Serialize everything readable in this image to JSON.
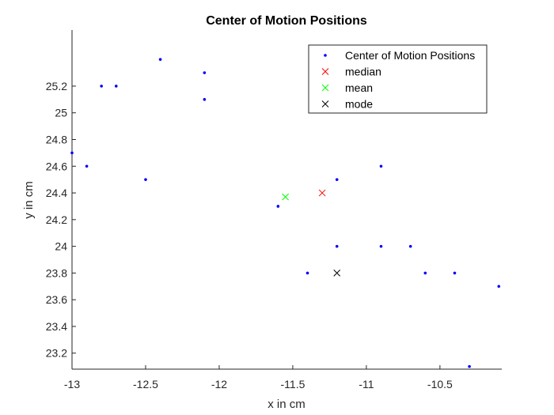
{
  "chart_data": {
    "type": "scatter",
    "title": "Center of Motion Positions",
    "xlabel": "x in cm",
    "ylabel": "y in cm",
    "xlim": [
      -13,
      -10.08
    ],
    "ylim": [
      23.08,
      25.62
    ],
    "xticks": [
      -13,
      -12.5,
      -12,
      -11.5,
      -11,
      -10.5
    ],
    "xtick_labels": [
      "-13",
      "-12.5",
      "-12",
      "-11.5",
      "-11",
      "-10.5"
    ],
    "yticks": [
      23.2,
      23.4,
      23.6,
      23.8,
      24,
      24.2,
      24.4,
      24.6,
      24.8,
      25,
      25.2
    ],
    "ytick_labels": [
      "23.2",
      "23.4",
      "23.6",
      "23.8",
      "24",
      "24.2",
      "24.4",
      "24.6",
      "24.8",
      "25",
      "25.2"
    ],
    "grid": false,
    "legend_position": "top-right",
    "series": [
      {
        "name": "Center of Motion Positions",
        "marker": "dot",
        "color": "#0000ff",
        "x": [
          -13.0,
          -12.9,
          -12.8,
          -12.7,
          -12.5,
          -12.4,
          -12.1,
          -12.1,
          -11.6,
          -11.4,
          -11.2,
          -11.2,
          -10.9,
          -10.9,
          -10.7,
          -10.6,
          -10.4,
          -10.3,
          -10.1
        ],
        "y": [
          24.7,
          24.6,
          25.2,
          25.2,
          24.5,
          25.4,
          25.3,
          25.1,
          24.3,
          23.8,
          24.5,
          24.0,
          24.6,
          24.0,
          24.0,
          23.8,
          23.8,
          23.1,
          23.7
        ]
      },
      {
        "name": "median",
        "marker": "x",
        "color": "#ff0000",
        "x": [
          -11.3
        ],
        "y": [
          24.4
        ]
      },
      {
        "name": "mean",
        "marker": "x",
        "color": "#00ff00",
        "x": [
          -11.55
        ],
        "y": [
          24.37
        ]
      },
      {
        "name": "mode",
        "marker": "x",
        "color": "#000000",
        "x": [
          -11.2
        ],
        "y": [
          23.8
        ]
      }
    ]
  }
}
